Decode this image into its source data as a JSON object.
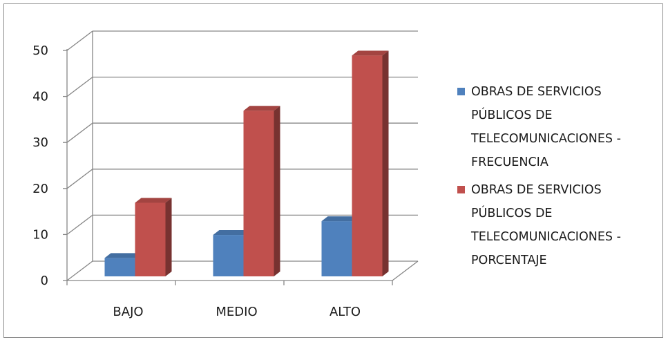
{
  "chart_data": {
    "type": "bar",
    "title": "",
    "xlabel": "",
    "ylabel": "",
    "categories": [
      "BAJO",
      "MEDIO",
      "ALTO"
    ],
    "ylim": [
      0,
      50
    ],
    "yticks": [
      0,
      10,
      20,
      30,
      40,
      50
    ],
    "grid": true,
    "legend_position": "right",
    "series": [
      {
        "name": "OBRAS DE SERVICIOS PÚBLICOS DE TELECOMUNICACIONES - FRECUENCIA",
        "legend_lines": [
          "OBRAS DE SERVICIOS",
          "PÚBLICOS DE",
          "TELECOMUNICACIONES -",
          "FRECUENCIA"
        ],
        "values": [
          4,
          9,
          12
        ],
        "color": "#4f81bd"
      },
      {
        "name": "OBRAS DE SERVICIOS PÚBLICOS DE TELECOMUNICACIONES - PORCENTAJE",
        "legend_lines": [
          "OBRAS DE SERVICIOS",
          "PÚBLICOS DE",
          "TELECOMUNICACIONES -",
          "PORCENTAJE"
        ],
        "values": [
          16,
          36,
          48
        ],
        "color": "#c0504d"
      }
    ]
  }
}
